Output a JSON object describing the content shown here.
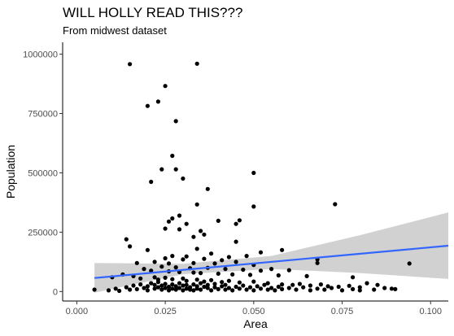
{
  "chart_data": {
    "type": "scatter",
    "title": "WILL HOLLY READ THIS???",
    "subtitle": "From midwest dataset",
    "xlabel": "Area",
    "ylabel": "Population",
    "xlim": [
      -0.004,
      0.105
    ],
    "ylim": [
      -40000,
      1050000
    ],
    "x_ticks": [
      0.0,
      0.025,
      0.05,
      0.075,
      0.1
    ],
    "x_tick_labels": [
      "0.000",
      "0.025",
      "0.050",
      "0.075",
      "0.100"
    ],
    "y_ticks": [
      0,
      250000,
      500000,
      750000,
      1000000
    ],
    "y_tick_labels": [
      "0",
      "250000",
      "500000",
      "750000",
      "1000000"
    ],
    "grid": false,
    "point_color": "#000000",
    "smooth": {
      "method": "lm",
      "color": "#3366FF",
      "band_color": "#CCCCCC",
      "line": [
        [
          0.005,
          57000
        ],
        [
          0.105,
          193000
        ]
      ],
      "band_upper": [
        [
          0.005,
          120000
        ],
        [
          0.03,
          117000
        ],
        [
          0.055,
          150000
        ],
        [
          0.08,
          237000
        ],
        [
          0.105,
          333000
        ]
      ],
      "band_lower": [
        [
          0.005,
          -5000
        ],
        [
          0.03,
          73000
        ],
        [
          0.055,
          95000
        ],
        [
          0.08,
          78000
        ],
        [
          0.105,
          53000
        ]
      ]
    },
    "points": [
      [
        0.015,
        958000
      ],
      [
        0.034,
        960000
      ],
      [
        0.025,
        866000
      ],
      [
        0.023,
        800000
      ],
      [
        0.02,
        782000
      ],
      [
        0.028,
        718000
      ],
      [
        0.027,
        572000
      ],
      [
        0.024,
        515000
      ],
      [
        0.028,
        515000
      ],
      [
        0.03,
        476000
      ],
      [
        0.021,
        462000
      ],
      [
        0.037,
        432000
      ],
      [
        0.034,
        367000
      ],
      [
        0.073,
        368000
      ],
      [
        0.05,
        500000
      ],
      [
        0.05,
        358000
      ],
      [
        0.029,
        320000
      ],
      [
        0.027,
        308000
      ],
      [
        0.026,
        295000
      ],
      [
        0.04,
        298000
      ],
      [
        0.031,
        285000
      ],
      [
        0.045,
        285000
      ],
      [
        0.046,
        300000
      ],
      [
        0.025,
        265000
      ],
      [
        0.029,
        262000
      ],
      [
        0.035,
        255000
      ],
      [
        0.014,
        220000
      ],
      [
        0.033,
        230000
      ],
      [
        0.036,
        240000
      ],
      [
        0.045,
        210000
      ],
      [
        0.015,
        190000
      ],
      [
        0.02,
        175000
      ],
      [
        0.034,
        180000
      ],
      [
        0.052,
        165000
      ],
      [
        0.058,
        175000
      ],
      [
        0.038,
        160000
      ],
      [
        0.027,
        150000
      ],
      [
        0.031,
        148000
      ],
      [
        0.043,
        145000
      ],
      [
        0.048,
        150000
      ],
      [
        0.025,
        140000
      ],
      [
        0.03,
        135000
      ],
      [
        0.036,
        138000
      ],
      [
        0.041,
        132000
      ],
      [
        0.068,
        135000
      ],
      [
        0.068,
        120000
      ],
      [
        0.094,
        118000
      ],
      [
        0.017,
        120000
      ],
      [
        0.022,
        125000
      ],
      [
        0.026,
        118000
      ],
      [
        0.033,
        120000
      ],
      [
        0.039,
        118000
      ],
      [
        0.045,
        125000
      ],
      [
        0.05,
        112000
      ],
      [
        0.055,
        95000
      ],
      [
        0.06,
        90000
      ],
      [
        0.024,
        105000
      ],
      [
        0.028,
        102000
      ],
      [
        0.032,
        98000
      ],
      [
        0.037,
        100000
      ],
      [
        0.042,
        95000
      ],
      [
        0.047,
        92000
      ],
      [
        0.052,
        88000
      ],
      [
        0.019,
        95000
      ],
      [
        0.021,
        88000
      ],
      [
        0.026,
        85000
      ],
      [
        0.029,
        82000
      ],
      [
        0.033,
        80000
      ],
      [
        0.035,
        78000
      ],
      [
        0.04,
        75000
      ],
      [
        0.044,
        72000
      ],
      [
        0.049,
        70000
      ],
      [
        0.057,
        68000
      ],
      [
        0.065,
        65000
      ],
      [
        0.078,
        60000
      ],
      [
        0.01,
        60000
      ],
      [
        0.013,
        72000
      ],
      [
        0.016,
        65000
      ],
      [
        0.018,
        55000
      ],
      [
        0.022,
        60000
      ],
      [
        0.023,
        50000
      ],
      [
        0.025,
        58000
      ],
      [
        0.027,
        52000
      ],
      [
        0.03,
        55000
      ],
      [
        0.031,
        45000
      ],
      [
        0.034,
        50000
      ],
      [
        0.036,
        42000
      ],
      [
        0.038,
        48000
      ],
      [
        0.041,
        40000
      ],
      [
        0.043,
        45000
      ],
      [
        0.046,
        38000
      ],
      [
        0.05,
        42000
      ],
      [
        0.054,
        35000
      ],
      [
        0.058,
        30000
      ],
      [
        0.061,
        28000
      ],
      [
        0.063,
        32000
      ],
      [
        0.066,
        25000
      ],
      [
        0.069,
        30000
      ],
      [
        0.071,
        22000
      ],
      [
        0.074,
        20000
      ],
      [
        0.077,
        24000
      ],
      [
        0.08,
        18000
      ],
      [
        0.082,
        35000
      ],
      [
        0.085,
        28000
      ],
      [
        0.089,
        12000
      ],
      [
        0.005,
        8000
      ],
      [
        0.009,
        5000
      ],
      [
        0.011,
        12000
      ],
      [
        0.012,
        3000
      ],
      [
        0.014,
        18000
      ],
      [
        0.015,
        8000
      ],
      [
        0.016,
        25000
      ],
      [
        0.017,
        10000
      ],
      [
        0.018,
        30000
      ],
      [
        0.019,
        15000
      ],
      [
        0.02,
        5000
      ],
      [
        0.02,
        22000
      ],
      [
        0.021,
        35000
      ],
      [
        0.022,
        12000
      ],
      [
        0.022,
        28000
      ],
      [
        0.023,
        18000
      ],
      [
        0.023,
        40000
      ],
      [
        0.024,
        8000
      ],
      [
        0.024,
        25000
      ],
      [
        0.025,
        15000
      ],
      [
        0.025,
        32000
      ],
      [
        0.026,
        5000
      ],
      [
        0.026,
        20000
      ],
      [
        0.027,
        12000
      ],
      [
        0.027,
        30000
      ],
      [
        0.028,
        8000
      ],
      [
        0.028,
        22000
      ],
      [
        0.029,
        15000
      ],
      [
        0.029,
        35000
      ],
      [
        0.03,
        5000
      ],
      [
        0.03,
        25000
      ],
      [
        0.031,
        12000
      ],
      [
        0.031,
        28000
      ],
      [
        0.032,
        8000
      ],
      [
        0.032,
        18000
      ],
      [
        0.033,
        30000
      ],
      [
        0.033,
        5000
      ],
      [
        0.034,
        22000
      ],
      [
        0.034,
        12000
      ],
      [
        0.035,
        35000
      ],
      [
        0.035,
        8000
      ],
      [
        0.036,
        20000
      ],
      [
        0.037,
        15000
      ],
      [
        0.037,
        28000
      ],
      [
        0.038,
        5000
      ],
      [
        0.039,
        18000
      ],
      [
        0.039,
        32000
      ],
      [
        0.04,
        10000
      ],
      [
        0.041,
        22000
      ],
      [
        0.042,
        8000
      ],
      [
        0.042,
        28000
      ],
      [
        0.043,
        15000
      ],
      [
        0.044,
        5000
      ],
      [
        0.045,
        20000
      ],
      [
        0.046,
        12000
      ],
      [
        0.047,
        25000
      ],
      [
        0.048,
        8000
      ],
      [
        0.049,
        18000
      ],
      [
        0.05,
        5000
      ],
      [
        0.051,
        22000
      ],
      [
        0.052,
        12000
      ],
      [
        0.053,
        28000
      ],
      [
        0.054,
        8000
      ],
      [
        0.055,
        15000
      ],
      [
        0.056,
        5000
      ],
      [
        0.057,
        20000
      ],
      [
        0.058,
        10000
      ],
      [
        0.06,
        15000
      ],
      [
        0.062,
        8000
      ],
      [
        0.064,
        18000
      ],
      [
        0.066,
        5000
      ],
      [
        0.068,
        12000
      ],
      [
        0.07,
        8000
      ],
      [
        0.072,
        15000
      ],
      [
        0.075,
        5000
      ],
      [
        0.078,
        10000
      ],
      [
        0.08,
        5000
      ],
      [
        0.084,
        8000
      ],
      [
        0.087,
        15000
      ],
      [
        0.09,
        10000
      ]
    ]
  }
}
